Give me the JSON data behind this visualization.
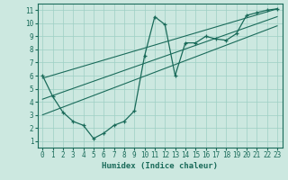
{
  "xlabel": "Humidex (Indice chaleur)",
  "xlim": [
    -0.5,
    23.5
  ],
  "ylim": [
    0.5,
    11.5
  ],
  "xticks": [
    0,
    1,
    2,
    3,
    4,
    5,
    6,
    7,
    8,
    9,
    10,
    11,
    12,
    13,
    14,
    15,
    16,
    17,
    18,
    19,
    20,
    21,
    22,
    23
  ],
  "yticks": [
    1,
    2,
    3,
    4,
    5,
    6,
    7,
    8,
    9,
    10,
    11
  ],
  "bg_color": "#cce8e0",
  "line_color": "#1a6b5a",
  "data_x": [
    0,
    1,
    2,
    3,
    4,
    5,
    6,
    7,
    8,
    9,
    10,
    11,
    12,
    13,
    14,
    15,
    16,
    17,
    18,
    19,
    20,
    21,
    22,
    23
  ],
  "data_y": [
    6,
    4.4,
    3.2,
    2.5,
    2.2,
    1.2,
    1.6,
    2.2,
    2.5,
    3.3,
    7.5,
    10.5,
    9.9,
    6.0,
    8.5,
    8.5,
    9.0,
    8.8,
    8.7,
    9.2,
    10.6,
    10.8,
    11.0,
    11.1
  ],
  "trend1_x": [
    0,
    23
  ],
  "trend1_y": [
    5.8,
    11.1
  ],
  "trend2_x": [
    0,
    23
  ],
  "trend2_y": [
    4.2,
    10.5
  ],
  "trend3_x": [
    0,
    23
  ],
  "trend3_y": [
    3.0,
    9.8
  ],
  "font_name": "DejaVu Sans Mono",
  "tick_fontsize": 5.5,
  "xlabel_fontsize": 6.5
}
